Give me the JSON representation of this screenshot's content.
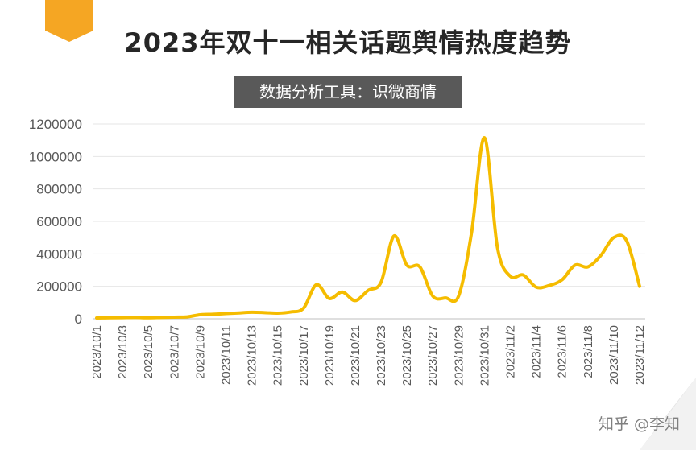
{
  "title": "2023年双十一相关话题舆情热度趋势",
  "subtitle": "数据分析工具：识微商情",
  "footer": "知乎 @李知",
  "colors": {
    "line": "#F5BC00",
    "accent": "#F5A623",
    "grid": "#E6E6E6",
    "text": "#595959"
  },
  "chart_data": {
    "type": "line",
    "title": "2023年双十一相关话题舆情热度趋势",
    "xlabel": "",
    "ylabel": "",
    "ylim": [
      0,
      1200000
    ],
    "yticks": [
      0,
      200000,
      400000,
      600000,
      800000,
      1000000,
      1200000
    ],
    "ytick_labels": [
      "0",
      "200000",
      "400000",
      "600000",
      "800000",
      "1000000",
      "1200000"
    ],
    "grid": true,
    "legend": "none",
    "x": [
      "2023/10/1",
      "2023/10/2",
      "2023/10/3",
      "2023/10/4",
      "2023/10/5",
      "2023/10/6",
      "2023/10/7",
      "2023/10/8",
      "2023/10/9",
      "2023/10/10",
      "2023/10/11",
      "2023/10/12",
      "2023/10/13",
      "2023/10/14",
      "2023/10/15",
      "2023/10/16",
      "2023/10/17",
      "2023/10/18",
      "2023/10/19",
      "2023/10/20",
      "2023/10/21",
      "2023/10/22",
      "2023/10/23",
      "2023/10/24",
      "2023/10/25",
      "2023/10/26",
      "2023/10/27",
      "2023/10/28",
      "2023/10/29",
      "2023/10/30",
      "2023/10/31",
      "2023/11/1",
      "2023/11/2",
      "2023/11/3",
      "2023/11/4",
      "2023/11/5",
      "2023/11/6",
      "2023/11/7",
      "2023/11/8",
      "2023/11/9",
      "2023/11/10",
      "2023/11/11",
      "2023/11/12"
    ],
    "xtick_labels": [
      "2023/10/1",
      "2023/10/3",
      "2023/10/5",
      "2023/10/7",
      "2023/10/9",
      "2023/10/11",
      "2023/10/13",
      "2023/10/15",
      "2023/10/17",
      "2023/10/19",
      "2023/10/21",
      "2023/10/23",
      "2023/10/25",
      "2023/10/27",
      "2023/10/29",
      "2023/10/31",
      "2023/11/2",
      "2023/11/4",
      "2023/11/6",
      "2023/11/8",
      "2023/11/10",
      "2023/11/12"
    ],
    "series": [
      {
        "values": [
          5000,
          6000,
          7000,
          8000,
          6000,
          8000,
          10000,
          12000,
          25000,
          28000,
          32000,
          36000,
          40000,
          38000,
          35000,
          42000,
          65000,
          210000,
          125000,
          165000,
          112000,
          175000,
          225000,
          510000,
          330000,
          320000,
          140000,
          128000,
          140000,
          530000,
          1115000,
          440000,
          262000,
          270000,
          195000,
          205000,
          240000,
          330000,
          320000,
          390000,
          500000,
          480000,
          200000
        ]
      }
    ]
  }
}
